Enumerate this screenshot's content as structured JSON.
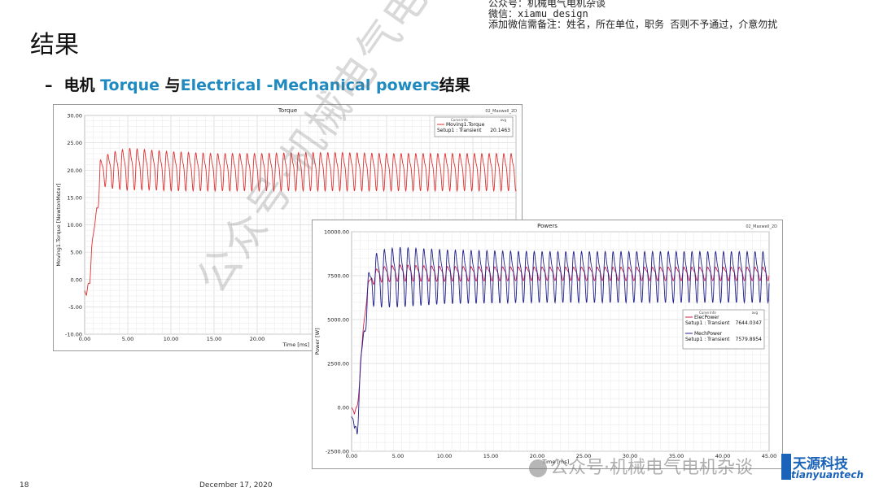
{
  "header_note": {
    "line1": "公众号：机械电气电机杂谈",
    "line2": "微信：xiamu_design",
    "line3": "添加微信需备注：姓名，所在单位，职务 否则不予通过，介意勿扰"
  },
  "slide": {
    "title": "结果",
    "subtitle_dash": "–",
    "subtitle_part1": "电机 ",
    "subtitle_hl1": "Torque",
    "subtitle_part2": " 与",
    "subtitle_hl2": "Electrical -Mechanical powers",
    "subtitle_part3": "结果",
    "page_number": "18",
    "date": "December 17, 2020"
  },
  "watermark": {
    "diagonal": "公众号·机械电气电机杂谈",
    "bottom": "公众号·机械电气电机杂谈",
    "logo_cn": "天源科技",
    "logo_en": "tianyuantech"
  },
  "chart_data": [
    {
      "type": "line",
      "title": "Torque",
      "corner_label": "02_Maxwell_2D",
      "xlabel": "Time [ms]",
      "ylabel": "Moving1.Torque [NewtonMeter]",
      "xlim": [
        0,
        50
      ],
      "ylim": [
        -10,
        30
      ],
      "x_ticks": [
        "0.00",
        "5.00",
        "10.00",
        "15.00",
        "20.00"
      ],
      "y_ticks": [
        "-10.00",
        "-5.00",
        "0.00",
        "5.00",
        "10.00",
        "15.00",
        "20.00",
        "25.00",
        "30.00"
      ],
      "grid": true,
      "legend": {
        "placement": "top-right",
        "head_left": "Curve Info",
        "head_right": "avg",
        "entries": [
          {
            "name": "Moving1.Torque",
            "sub": "Setup1 : Transient",
            "value": "20.1463",
            "color": "#e03030"
          }
        ]
      },
      "series": [
        {
          "name": "Moving1.Torque",
          "color": "#e03030",
          "period_ms": 0.85,
          "x": [
            0.0,
            0.2,
            0.4,
            0.6,
            0.8,
            1.0,
            1.2,
            1.4,
            1.6,
            1.8,
            2.0,
            3.0,
            5.0,
            7.0,
            10.0,
            15.0,
            20.0,
            25.0,
            30.0,
            35.0,
            40.0,
            45.0,
            50.0
          ],
          "center": [
            -2.0,
            -3.5,
            -1.0,
            0.0,
            6.0,
            7.0,
            10.0,
            13.5,
            13.8,
            19.5,
            20.0,
            20.3,
            20.6,
            20.5,
            20.2,
            20.0,
            20.0,
            20.1,
            20.1,
            20.0,
            20.0,
            20.0,
            20.0
          ],
          "amplitude": [
            0.0,
            0.8,
            1.2,
            1.0,
            1.2,
            1.5,
            1.2,
            0.8,
            0.5,
            3.0,
            3.0,
            3.8,
            4.5,
            4.3,
            4.2,
            4.0,
            4.0,
            4.1,
            4.1,
            4.0,
            4.0,
            4.0,
            4.0
          ]
        }
      ]
    },
    {
      "type": "line",
      "title": "Powers",
      "corner_label": "02_Maxwell_2D",
      "xlabel": "Time [ms]",
      "ylabel": "Power [W]",
      "xlim": [
        0,
        45
      ],
      "ylim": [
        -2500,
        10000
      ],
      "x_ticks": [
        "0.00",
        "5.00",
        "10.00",
        "15.00",
        "20.00",
        "25.00",
        "30.00",
        "35.00",
        "40.00",
        "45.00"
      ],
      "y_ticks": [
        "-2500.00",
        "0.00",
        "2500.00",
        "5000.00",
        "7500.00",
        "10000.00"
      ],
      "grid": true,
      "legend": {
        "placement": "middle-right",
        "head_left": "Curve Info",
        "head_right": "avg",
        "entries": [
          {
            "name": "ElecPower",
            "sub": "Setup1 : Transient",
            "value": "7644.0347",
            "color": "#d0204a"
          },
          {
            "name": "MechPower",
            "sub": "Setup1 : Transient",
            "value": "7579.8954",
            "color": "#20208a"
          }
        ]
      },
      "series": [
        {
          "name": "ElecPower",
          "color": "#d0204a",
          "period_ms": 0.85,
          "x": [
            0.0,
            0.3,
            0.6,
            0.9,
            1.2,
            1.5,
            1.8,
            2.2,
            3.0,
            5.0,
            10.0,
            20.0,
            30.0,
            45.0
          ],
          "center": [
            0,
            -500,
            300,
            1500,
            4000,
            6000,
            6800,
            7400,
            7600,
            7700,
            7650,
            7650,
            7640,
            7640
          ],
          "amplitude": [
            0,
            300,
            300,
            400,
            500,
            500,
            400,
            450,
            500,
            550,
            500,
            450,
            450,
            450
          ]
        },
        {
          "name": "MechPower",
          "color": "#20208a",
          "period_ms": 0.85,
          "x": [
            0.0,
            0.3,
            0.6,
            0.9,
            1.2,
            1.5,
            1.8,
            2.2,
            3.0,
            5.0,
            10.0,
            20.0,
            30.0,
            45.0
          ],
          "center": [
            -500,
            -1500,
            -800,
            1500,
            3500,
            5500,
            6500,
            7300,
            7500,
            7600,
            7600,
            7580,
            7580,
            7580
          ],
          "amplitude": [
            0,
            900,
            1000,
            800,
            900,
            1200,
            1400,
            1600,
            1900,
            2000,
            1800,
            1700,
            1700,
            1700
          ]
        }
      ]
    }
  ]
}
